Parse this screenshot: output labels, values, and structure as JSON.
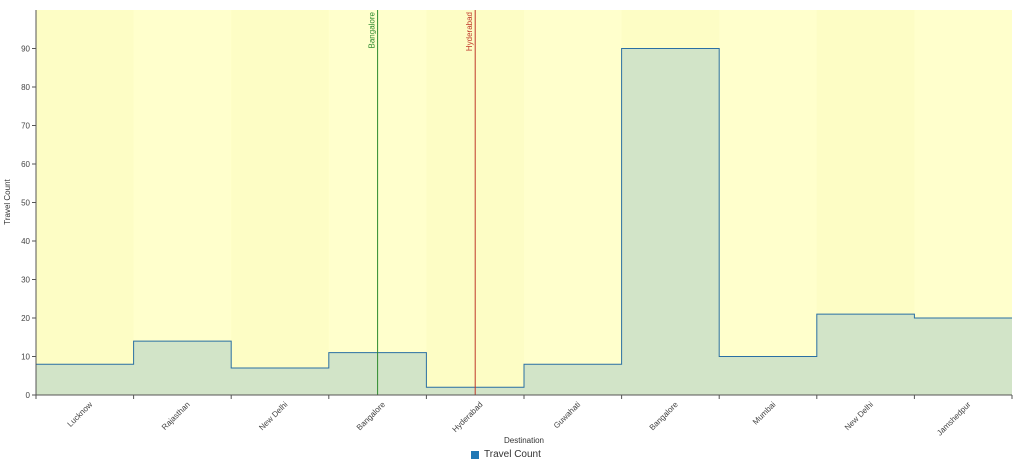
{
  "chart_data": {
    "type": "area",
    "interpolation": "step",
    "categories": [
      "Lucknow",
      "Rajasthan",
      "New Delhi",
      "Bangalore",
      "Hyderabad",
      "Guwahati",
      "Bangalore",
      "Mumbai",
      "New Delhi",
      "Jamshedpur"
    ],
    "series": [
      {
        "name": "Travel Count",
        "values": [
          8,
          14,
          7,
          11,
          2,
          8,
          90,
          10,
          21,
          20
        ]
      }
    ],
    "xlabel": "Destination",
    "ylabel": "Travel Count",
    "ylim": [
      0,
      100
    ],
    "yticks": [
      0,
      10,
      20,
      30,
      40,
      50,
      60,
      70,
      80,
      90
    ],
    "grid": false,
    "legend_position": "bottom-center",
    "annotations": [
      {
        "label": "Bangalore",
        "category_index": 3,
        "color": "#2e8b2e"
      },
      {
        "label": "Hyderabad",
        "category_index": 4,
        "color": "#c0392b"
      }
    ],
    "colors": {
      "background": "#ffffcc",
      "band": "#fdfdc5",
      "fill": "#d2e4c8",
      "line": "#2a6fa3",
      "legend": "#1f77b4",
      "axis": "#555555"
    }
  }
}
